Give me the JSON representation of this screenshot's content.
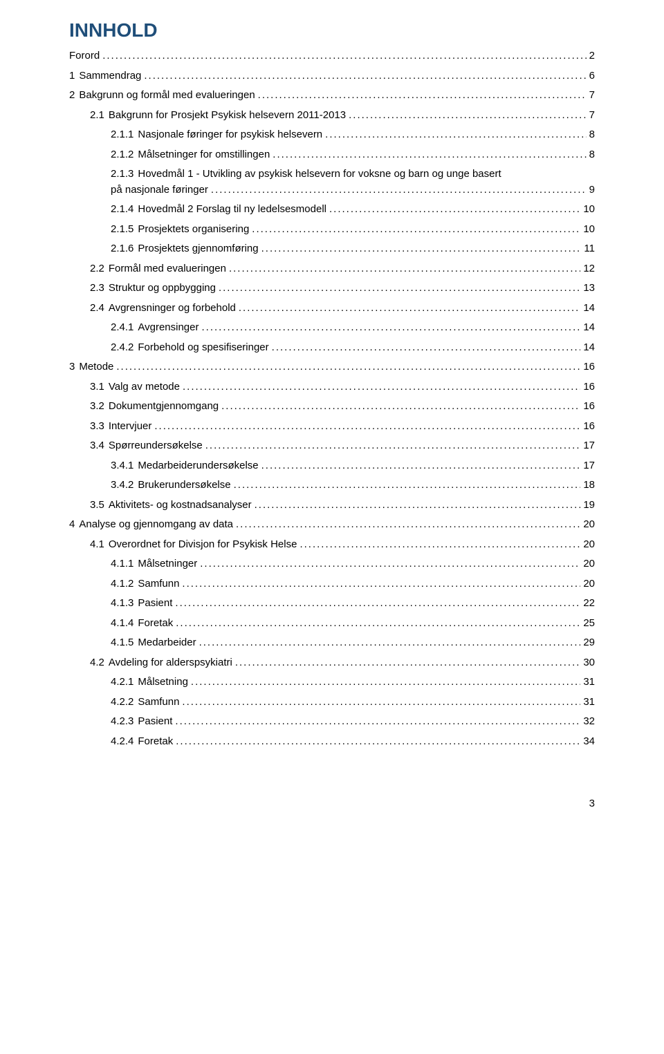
{
  "title": "INNHOLD",
  "title_color": "#1f4e79",
  "title_fontsize": 28,
  "body_fontsize": 15,
  "background_color": "#ffffff",
  "text_color": "#000000",
  "page_number": "3",
  "entries": [
    {
      "indent": 0,
      "num": "",
      "label": "Forord",
      "page": "2"
    },
    {
      "indent": 0,
      "num": "1",
      "label": "Sammendrag",
      "page": "6"
    },
    {
      "indent": 0,
      "num": "2",
      "label": "Bakgrunn og formål med evalueringen",
      "page": "7"
    },
    {
      "indent": 1,
      "num": "2.1",
      "label": "Bakgrunn for Prosjekt Psykisk helsevern 2011-2013",
      "page": "7"
    },
    {
      "indent": 2,
      "num": "2.1.1",
      "label": "Nasjonale føringer for psykisk helsevern",
      "page": "8"
    },
    {
      "indent": 2,
      "num": "2.1.2",
      "label": "Målsetninger for omstillingen",
      "page": "8"
    },
    {
      "indent": 2,
      "num": "2.1.3",
      "label": "Hovedmål 1 - Utvikling av psykisk helsevern for voksne og barn og unge basert på nasjonale føringer",
      "page": "9"
    },
    {
      "indent": 2,
      "num": "2.1.4",
      "label": "Hovedmål 2 Forslag til ny ledelsesmodell",
      "page": "10"
    },
    {
      "indent": 2,
      "num": "2.1.5",
      "label": "Prosjektets organisering",
      "page": "10"
    },
    {
      "indent": 2,
      "num": "2.1.6",
      "label": "Prosjektets gjennomføring",
      "page": "11"
    },
    {
      "indent": 1,
      "num": "2.2",
      "label": "Formål med evalueringen",
      "page": "12"
    },
    {
      "indent": 1,
      "num": "2.3",
      "label": "Struktur og oppbygging",
      "page": "13"
    },
    {
      "indent": 1,
      "num": "2.4",
      "label": "Avgrensninger og forbehold",
      "page": "14"
    },
    {
      "indent": 2,
      "num": "2.4.1",
      "label": "Avgrensinger",
      "page": "14"
    },
    {
      "indent": 2,
      "num": "2.4.2",
      "label": "Forbehold og spesifiseringer",
      "page": "14"
    },
    {
      "indent": 0,
      "num": "3",
      "label": "Metode",
      "page": "16"
    },
    {
      "indent": 1,
      "num": "3.1",
      "label": "Valg av metode",
      "page": "16"
    },
    {
      "indent": 1,
      "num": "3.2",
      "label": "Dokumentgjennomgang",
      "page": "16"
    },
    {
      "indent": 1,
      "num": "3.3",
      "label": "Intervjuer",
      "page": "16"
    },
    {
      "indent": 1,
      "num": "3.4",
      "label": "Spørreundersøkelse",
      "page": "17"
    },
    {
      "indent": 2,
      "num": "3.4.1",
      "label": "Medarbeiderundersøkelse",
      "page": "17"
    },
    {
      "indent": 2,
      "num": "3.4.2",
      "label": "Brukerundersøkelse",
      "page": "18"
    },
    {
      "indent": 1,
      "num": "3.5",
      "label": "Aktivitets- og kostnadsanalyser",
      "page": "19"
    },
    {
      "indent": 0,
      "num": "4",
      "label": "Analyse og gjennomgang av data",
      "page": "20"
    },
    {
      "indent": 1,
      "num": "4.1",
      "label": "Overordnet for Divisjon for Psykisk Helse",
      "page": "20"
    },
    {
      "indent": 2,
      "num": "4.1.1",
      "label": "Målsetninger",
      "page": "20"
    },
    {
      "indent": 2,
      "num": "4.1.2",
      "label": "Samfunn",
      "page": "20"
    },
    {
      "indent": 2,
      "num": "4.1.3",
      "label": "Pasient",
      "page": "22"
    },
    {
      "indent": 2,
      "num": "4.1.4",
      "label": "Foretak",
      "page": "25"
    },
    {
      "indent": 2,
      "num": "4.1.5",
      "label": "Medarbeider",
      "page": "29"
    },
    {
      "indent": 1,
      "num": "4.2",
      "label": "Avdeling for alderspsykiatri",
      "page": "30"
    },
    {
      "indent": 2,
      "num": "4.2.1",
      "label": "Målsetning",
      "page": "31"
    },
    {
      "indent": 2,
      "num": "4.2.2",
      "label": "Samfunn",
      "page": "31"
    },
    {
      "indent": 2,
      "num": "4.2.3",
      "label": "Pasient",
      "page": "32"
    },
    {
      "indent": 2,
      "num": "4.2.4",
      "label": "Foretak",
      "page": "34"
    }
  ]
}
